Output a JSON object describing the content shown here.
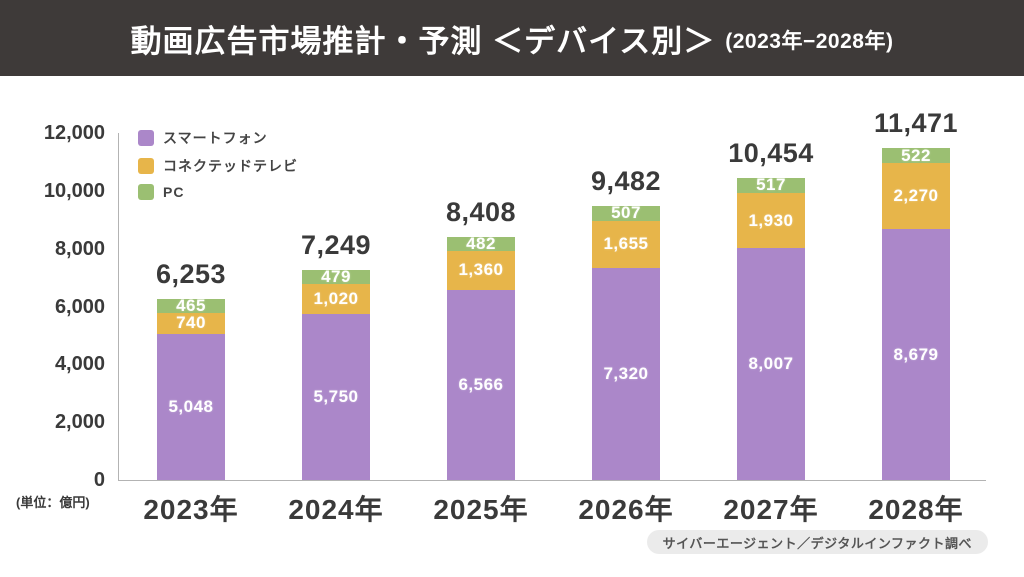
{
  "header": {
    "title": "動画広告市場推計・予測 ＜デバイス別＞",
    "subtitle": "(2023年−2028年)"
  },
  "chart_data": {
    "type": "bar",
    "stacked": true,
    "title": "動画広告市場推計・予測 ＜デバイス別＞ (2023年−2028年)",
    "categories": [
      "2023年",
      "2024年",
      "2025年",
      "2026年",
      "2027年",
      "2028年"
    ],
    "series": [
      {
        "name": "スマートフォン",
        "key": "smartphone",
        "color": "#ab87c9",
        "values": [
          5048,
          5750,
          6566,
          7320,
          8007,
          8679
        ]
      },
      {
        "name": "コネクテッドテレビ",
        "key": "connected-tv",
        "color": "#e7b54a",
        "values": [
          740,
          1020,
          1360,
          1655,
          1930,
          2270
        ]
      },
      {
        "name": "PC",
        "key": "pc",
        "color": "#9bbf72",
        "values": [
          465,
          479,
          482,
          507,
          517,
          522
        ]
      }
    ],
    "totals": [
      6253,
      7249,
      8408,
      9482,
      10454,
      11471
    ],
    "unit_label": "(単位：億円)",
    "y_axis": {
      "min": 0,
      "max": 12000,
      "tick_step": 2000,
      "tick_labels": [
        "0",
        "2,000",
        "4,000",
        "6,000",
        "8,000",
        "10,000",
        "12,000"
      ]
    },
    "legend_position": "top-left",
    "grid": false
  },
  "source": "サイバーエージェント／デジタルインファクト調べ",
  "colors": {
    "header_bg": "#3e3a39",
    "axis": "#b3b3b3",
    "text": "#3a3a3a",
    "source_bg": "#ebebeb"
  }
}
